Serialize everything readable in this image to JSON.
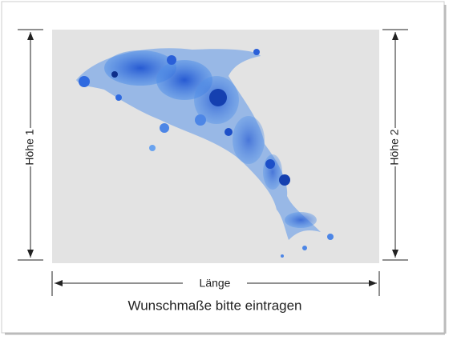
{
  "left_label": "Höhe 1",
  "right_label": "Höhe 2",
  "bottom_label": "Länge",
  "caption": "Wunschmaße bitte eintragen"
}
